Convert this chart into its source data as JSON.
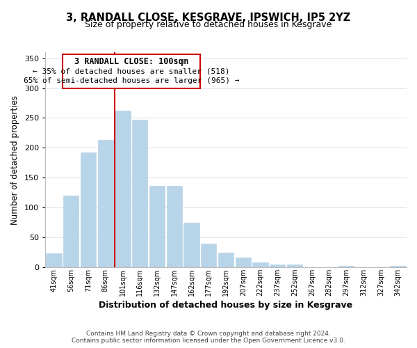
{
  "title": "3, RANDALL CLOSE, KESGRAVE, IPSWICH, IP5 2YZ",
  "subtitle": "Size of property relative to detached houses in Kesgrave",
  "xlabel": "Distribution of detached houses by size in Kesgrave",
  "ylabel": "Number of detached properties",
  "bar_labels": [
    "41sqm",
    "56sqm",
    "71sqm",
    "86sqm",
    "101sqm",
    "116sqm",
    "132sqm",
    "147sqm",
    "162sqm",
    "177sqm",
    "192sqm",
    "207sqm",
    "222sqm",
    "237sqm",
    "252sqm",
    "267sqm",
    "282sqm",
    "297sqm",
    "312sqm",
    "327sqm",
    "342sqm"
  ],
  "bar_values": [
    24,
    120,
    192,
    213,
    262,
    247,
    137,
    136,
    75,
    40,
    25,
    16,
    8,
    5,
    5,
    0,
    0,
    2,
    0,
    0,
    2
  ],
  "bar_color": "#b8d4e8",
  "bar_edge_color": "#b8d4e8",
  "highlight_line_color": "#cc0000",
  "ylim": [
    0,
    360
  ],
  "yticks": [
    0,
    50,
    100,
    150,
    200,
    250,
    300,
    350
  ],
  "annotation_title": "3 RANDALL CLOSE: 100sqm",
  "annotation_line1": "← 35% of detached houses are smaller (518)",
  "annotation_line2": "65% of semi-detached houses are larger (965) →",
  "annotation_box_color": "#ffffff",
  "annotation_box_edge": "#cc0000",
  "footer_line1": "Contains HM Land Registry data © Crown copyright and database right 2024.",
  "footer_line2": "Contains public sector information licensed under the Open Government Licence v3.0.",
  "background_color": "#ffffff",
  "grid_color": "#dde6ee"
}
